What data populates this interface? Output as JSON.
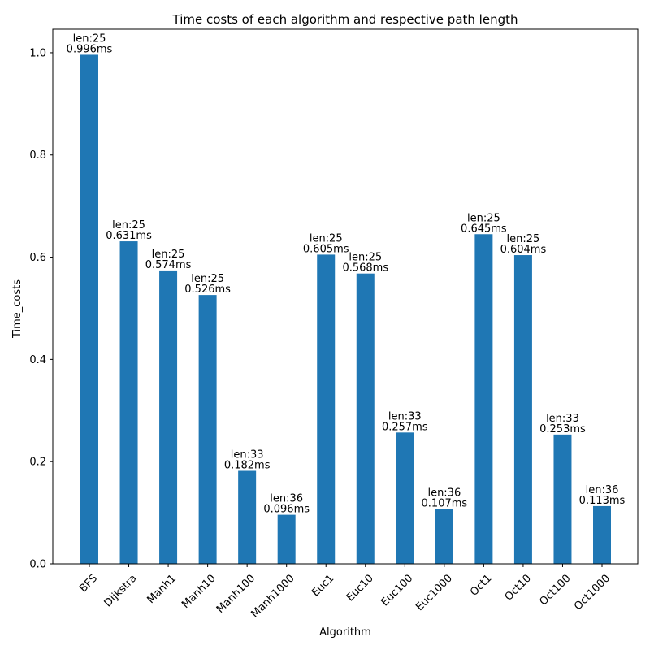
{
  "chart_data": {
    "type": "bar",
    "title": "Time costs of each algorithm and respective path length",
    "xlabel": "Algorithm",
    "ylabel": "Time_costs",
    "ylim": [
      0,
      1.046
    ],
    "yticks": [
      "0.0",
      "0.2",
      "0.4",
      "0.6",
      "0.8",
      "1.0"
    ],
    "ytick_values": [
      0,
      0.2,
      0.4,
      0.6,
      0.8,
      1.0
    ],
    "bar_color": "#1f77b4",
    "grid": false,
    "legend": "none",
    "categories": [
      "BFS",
      "Dijkstra",
      "Manh1",
      "Manh10",
      "Manh100",
      "Manh1000",
      "Euc1",
      "Euc10",
      "Euc100",
      "Euc1000",
      "Oct1",
      "Oct10",
      "Oct100",
      "Oct1000"
    ],
    "values": [
      0.996,
      0.631,
      0.574,
      0.526,
      0.182,
      0.096,
      0.605,
      0.568,
      0.257,
      0.107,
      0.645,
      0.604,
      0.253,
      0.113
    ],
    "bar_labels": [
      [
        "len:25",
        "0.996ms"
      ],
      [
        "len:25",
        "0.631ms"
      ],
      [
        "len:25",
        "0.574ms"
      ],
      [
        "len:25",
        "0.526ms"
      ],
      [
        "len:33",
        "0.182ms"
      ],
      [
        "len:36",
        "0.096ms"
      ],
      [
        "len:25",
        "0.605ms"
      ],
      [
        "len:25",
        "0.568ms"
      ],
      [
        "len:33",
        "0.257ms"
      ],
      [
        "len:36",
        "0.107ms"
      ],
      [
        "len:25",
        "0.645ms"
      ],
      [
        "len:25",
        "0.604ms"
      ],
      [
        "len:33",
        "0.253ms"
      ],
      [
        "len:36",
        "0.113ms"
      ]
    ]
  }
}
